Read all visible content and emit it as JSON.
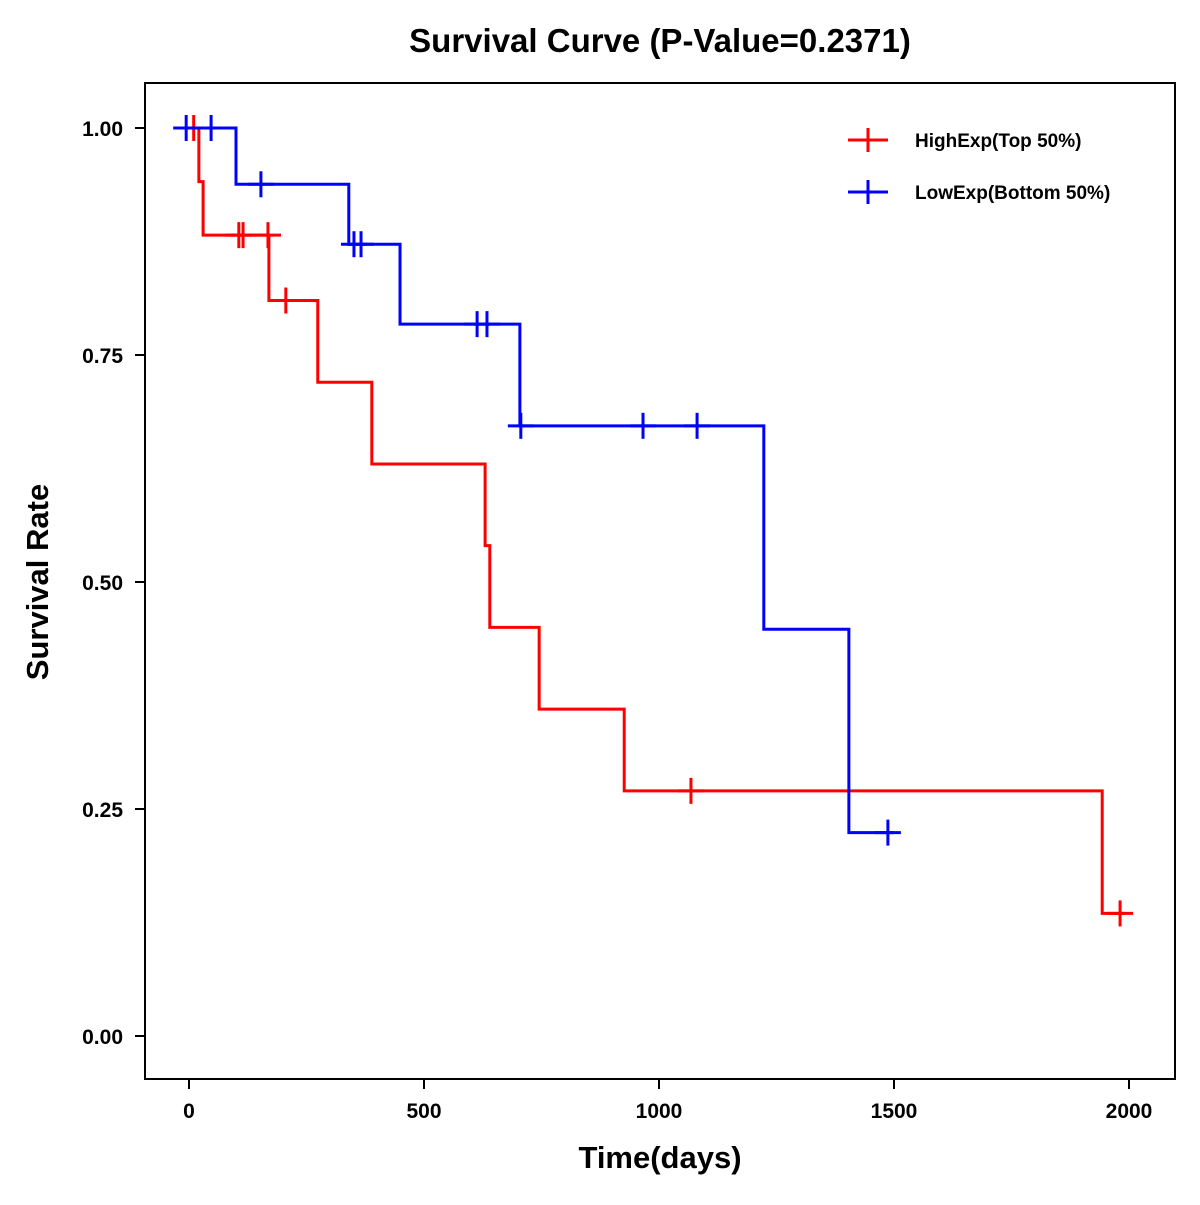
{
  "chart_data": {
    "type": "line",
    "subtype": "kaplan-meier step",
    "title": "Survival Curve (P-Value=0.2371)",
    "xlabel": "Time(days)",
    "ylabel": "Survival Rate",
    "xlim": [
      -90,
      2110
    ],
    "ylim": [
      -0.05,
      1.05
    ],
    "xticks": [
      0,
      500,
      1000,
      1500,
      2000
    ],
    "xtick_labels": [
      "0",
      "500",
      "1000",
      "1500",
      "2000"
    ],
    "yticks": [
      0,
      0.25,
      0.5,
      0.75,
      1.0
    ],
    "ytick_labels": [
      "0.00",
      "0.25",
      "0.50",
      "0.75",
      "1.00"
    ],
    "grid": false,
    "legend_position": "top-right",
    "series": [
      {
        "name": "HighExp(Top 50%)",
        "color": "#ff0000",
        "steps": [
          [
            0,
            1.0
          ],
          [
            21,
            0.941
          ],
          [
            30,
            0.882
          ],
          [
            170,
            0.81
          ],
          [
            274,
            0.72
          ],
          [
            389,
            0.63
          ],
          [
            630,
            0.54
          ],
          [
            640,
            0.45
          ],
          [
            745,
            0.36
          ],
          [
            926,
            0.27
          ],
          [
            1943,
            0.135
          ],
          [
            1990,
            0.135
          ]
        ],
        "censored": [
          [
            10,
            1.0
          ],
          [
            106,
            0.882
          ],
          [
            115,
            0.882
          ],
          [
            168,
            0.882
          ],
          [
            206,
            0.81
          ],
          [
            1068,
            0.27
          ],
          [
            1981,
            0.135
          ]
        ]
      },
      {
        "name": "LowExp(Bottom 50%)",
        "color": "#0000ff",
        "steps": [
          [
            -10,
            1.0
          ],
          [
            100,
            0.938
          ],
          [
            340,
            0.872
          ],
          [
            449,
            0.784
          ],
          [
            704,
            0.672
          ],
          [
            1223,
            0.448
          ],
          [
            1404,
            0.224
          ],
          [
            1500,
            0.224
          ]
        ],
        "censored": [
          [
            -6,
            1.0
          ],
          [
            47,
            1.0
          ],
          [
            153,
            0.938
          ],
          [
            351,
            0.872
          ],
          [
            366,
            0.872
          ],
          [
            613,
            0.784
          ],
          [
            634,
            0.784
          ],
          [
            706,
            0.672
          ],
          [
            966,
            0.672
          ],
          [
            1081,
            0.672
          ],
          [
            1487,
            0.224
          ]
        ]
      }
    ]
  }
}
